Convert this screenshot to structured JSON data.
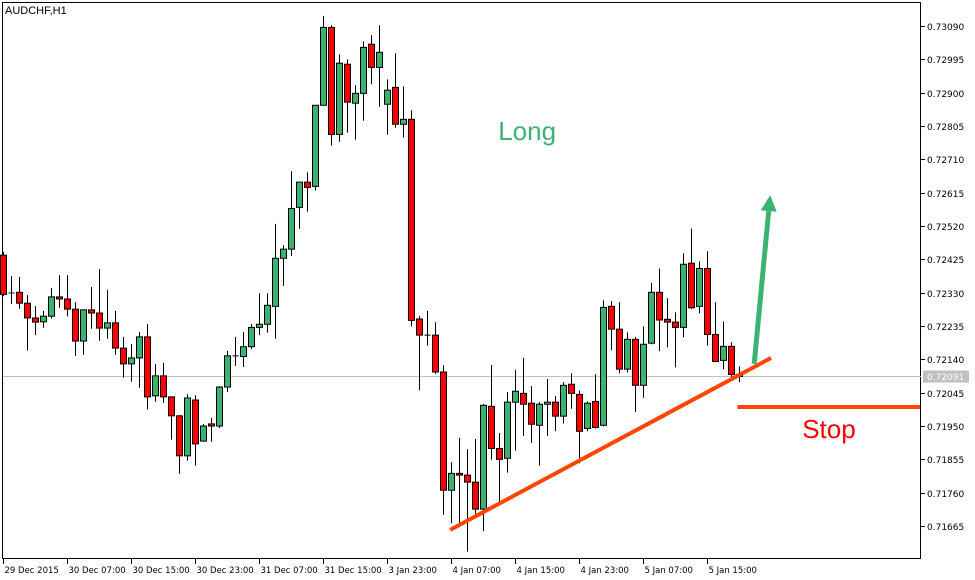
{
  "chart_data": {
    "type": "candlestick",
    "title": "AUDCHF,H1",
    "symbol": "AUDCHF",
    "timeframe": "H1",
    "ylim": [
      0.71575,
      0.73125
    ],
    "y_ticks": [
      "0.73090",
      "0.72995",
      "0.72900",
      "0.72805",
      "0.72710",
      "0.72615",
      "0.72520",
      "0.72425",
      "0.72330",
      "0.72235",
      "0.72140",
      "0.72045",
      "0.71950",
      "0.71855",
      "0.71760",
      "0.71665"
    ],
    "x_tick_labels": [
      "29 Dec 2015",
      "30 Dec 07:00",
      "30 Dec 15:00",
      "30 Dec 23:00",
      "31 Dec 07:00",
      "31 Dec 15:00",
      "3 Jan 23:00",
      "4 Jan 07:00",
      "4 Jan 15:00",
      "4 Jan 23:00",
      "5 Jan 07:00",
      "5 Jan 15:00"
    ],
    "x_tick_every_n_candles": 8,
    "current_price": "0.72091",
    "colors": {
      "bull": "#3cb371",
      "bear": "#ff0000",
      "outline": "#000000",
      "bid_line": "#c0c0c0",
      "trendline": "#ff4500",
      "long_arrow": "#3cb371",
      "stop_text": "#ff0000"
    },
    "grid": false,
    "candles_ohlc": [
      [
        0.72437,
        0.72446,
        0.7232,
        0.72325
      ],
      [
        0.72329,
        0.72377,
        0.72298,
        0.72329
      ],
      [
        0.72331,
        0.72375,
        0.72284,
        0.723
      ],
      [
        0.723,
        0.72323,
        0.72165,
        0.72258
      ],
      [
        0.72258,
        0.72292,
        0.72209,
        0.72246
      ],
      [
        0.72247,
        0.72278,
        0.7223,
        0.72263
      ],
      [
        0.72263,
        0.72343,
        0.72256,
        0.72318
      ],
      [
        0.72318,
        0.7238,
        0.72287,
        0.72312
      ],
      [
        0.72312,
        0.7238,
        0.72262,
        0.72283
      ],
      [
        0.72283,
        0.72303,
        0.7215,
        0.72192
      ],
      [
        0.72192,
        0.72281,
        0.72153,
        0.72281
      ],
      [
        0.72281,
        0.72346,
        0.72227,
        0.72272
      ],
      [
        0.72272,
        0.72397,
        0.72193,
        0.72229
      ],
      [
        0.72229,
        0.72338,
        0.72199,
        0.72244
      ],
      [
        0.72244,
        0.72278,
        0.72153,
        0.72172
      ],
      [
        0.72172,
        0.72204,
        0.72088,
        0.72127
      ],
      [
        0.72127,
        0.72184,
        0.72076,
        0.72144
      ],
      [
        0.72144,
        0.72218,
        0.72059,
        0.72204
      ],
      [
        0.72204,
        0.72241,
        0.71997,
        0.72033
      ],
      [
        0.72036,
        0.72127,
        0.72019,
        0.72093
      ],
      [
        0.72093,
        0.7213,
        0.72016,
        0.72033
      ],
      [
        0.72033,
        0.72033,
        0.71911,
        0.71979
      ],
      [
        0.71979,
        0.71981,
        0.71814,
        0.71865
      ],
      [
        0.71865,
        0.72041,
        0.71851,
        0.7203
      ],
      [
        0.72024,
        0.72038,
        0.71837,
        0.71899
      ],
      [
        0.71907,
        0.71956,
        0.71905,
        0.7195
      ],
      [
        0.71956,
        0.71973,
        0.71905,
        0.7195
      ],
      [
        0.7195,
        0.72064,
        0.71944,
        0.72061
      ],
      [
        0.72061,
        0.72164,
        0.72047,
        0.7215
      ],
      [
        0.7215,
        0.72204,
        0.72121,
        0.72148
      ],
      [
        0.72148,
        0.72218,
        0.72118,
        0.72176
      ],
      [
        0.72176,
        0.72241,
        0.72169,
        0.72231
      ],
      [
        0.72231,
        0.72328,
        0.72209,
        0.7224
      ],
      [
        0.7224,
        0.72328,
        0.72216,
        0.72294
      ],
      [
        0.72291,
        0.72526,
        0.72199,
        0.72428
      ],
      [
        0.72428,
        0.72465,
        0.72349,
        0.72454
      ],
      [
        0.72454,
        0.72676,
        0.72435,
        0.7257
      ],
      [
        0.72573,
        0.72645,
        0.72512,
        0.72645
      ],
      [
        0.72645,
        0.72673,
        0.72561,
        0.7263
      ],
      [
        0.72633,
        0.72864,
        0.72621,
        0.72864
      ],
      [
        0.72864,
        0.73119,
        0.72864,
        0.73086
      ],
      [
        0.73086,
        0.73092,
        0.72749,
        0.72781
      ],
      [
        0.72781,
        0.73009,
        0.7276,
        0.72984
      ],
      [
        0.72981,
        0.72995,
        0.72786,
        0.72873
      ],
      [
        0.7287,
        0.72921,
        0.72766,
        0.72898
      ],
      [
        0.72898,
        0.73046,
        0.7282,
        0.73029
      ],
      [
        0.73038,
        0.73064,
        0.72924,
        0.72972
      ],
      [
        0.72972,
        0.73092,
        0.7286,
        0.73015
      ],
      [
        0.72867,
        0.72938,
        0.7278,
        0.72907
      ],
      [
        0.72915,
        0.73012,
        0.728,
        0.7281
      ],
      [
        0.7281,
        0.72918,
        0.72772,
        0.72824
      ],
      [
        0.72824,
        0.7285,
        0.72234,
        0.72251
      ],
      [
        0.72255,
        0.72264,
        0.72052,
        0.72209
      ],
      [
        0.72209,
        0.72278,
        0.72179,
        0.72209
      ],
      [
        0.72209,
        0.72246,
        0.72098,
        0.72104
      ],
      [
        0.72104,
        0.72123,
        0.71697,
        0.71767
      ],
      [
        0.71767,
        0.71847,
        0.71673,
        0.71815
      ],
      [
        0.71815,
        0.71916,
        0.71663,
        0.7181
      ],
      [
        0.7181,
        0.71884,
        0.71592,
        0.7179
      ],
      [
        0.7179,
        0.71913,
        0.71698,
        0.71713
      ],
      [
        0.71713,
        0.72013,
        0.7165,
        0.72009
      ],
      [
        0.72006,
        0.72124,
        0.71854,
        0.71886
      ],
      [
        0.71886,
        0.7193,
        0.7173,
        0.71855
      ],
      [
        0.71858,
        0.72047,
        0.71817,
        0.72018
      ],
      [
        0.72018,
        0.7211,
        0.7188,
        0.72049
      ],
      [
        0.72043,
        0.72144,
        0.71922,
        0.72012
      ],
      [
        0.72015,
        0.72064,
        0.71902,
        0.71955
      ],
      [
        0.71952,
        0.72018,
        0.71837,
        0.72012
      ],
      [
        0.72012,
        0.72084,
        0.71922,
        0.72018
      ],
      [
        0.72018,
        0.72036,
        0.71935,
        0.71978
      ],
      [
        0.71978,
        0.72075,
        0.71957,
        0.72066
      ],
      [
        0.72069,
        0.721,
        0.71999,
        0.72043
      ],
      [
        0.7204,
        0.72051,
        0.71844,
        0.71935
      ],
      [
        0.71943,
        0.7202,
        0.71935,
        0.72015
      ],
      [
        0.7202,
        0.72098,
        0.71943,
        0.71946
      ],
      [
        0.71952,
        0.72308,
        0.71949,
        0.72288
      ],
      [
        0.72291,
        0.72306,
        0.72166,
        0.72226
      ],
      [
        0.72226,
        0.72303,
        0.721,
        0.72112
      ],
      [
        0.72112,
        0.72217,
        0.72103,
        0.72197
      ],
      [
        0.72197,
        0.72204,
        0.7199,
        0.72066
      ],
      [
        0.72066,
        0.72234,
        0.7203,
        0.72183
      ],
      [
        0.72186,
        0.72358,
        0.72183,
        0.72331
      ],
      [
        0.72331,
        0.72399,
        0.72163,
        0.72252
      ],
      [
        0.72254,
        0.72314,
        0.72174,
        0.72246
      ],
      [
        0.72246,
        0.72274,
        0.72117,
        0.72231
      ],
      [
        0.72231,
        0.72442,
        0.72203,
        0.72411
      ],
      [
        0.72414,
        0.72513,
        0.72283,
        0.72287
      ],
      [
        0.72291,
        0.72419,
        0.72271,
        0.72399
      ],
      [
        0.72399,
        0.72448,
        0.72179,
        0.72211
      ],
      [
        0.72211,
        0.72303,
        0.72134,
        0.72134
      ],
      [
        0.72137,
        0.72248,
        0.72112,
        0.72177
      ],
      [
        0.72177,
        0.72189,
        0.72086,
        0.72097
      ],
      [
        0.72097,
        0.7212,
        0.72075,
        0.72091
      ]
    ],
    "annotations": {
      "long_label": "Long",
      "stop_label": "Stop",
      "trendline": {
        "from": {
          "candle": 55.9,
          "price": 0.71654
        },
        "to": {
          "candle": 96.0,
          "price": 0.72144
        }
      },
      "long_arrow": {
        "from": {
          "candle": 93.9,
          "price": 0.72127
        },
        "to": {
          "candle": 95.9,
          "price": 0.72608
        }
      },
      "stop_line": {
        "from_candle": 91.8,
        "price": 0.72004
      },
      "long_label_at": {
        "candle": 61.9,
        "price": 0.72794
      },
      "stop_label_at": {
        "candle": 99.9,
        "price": 0.71944
      }
    }
  }
}
